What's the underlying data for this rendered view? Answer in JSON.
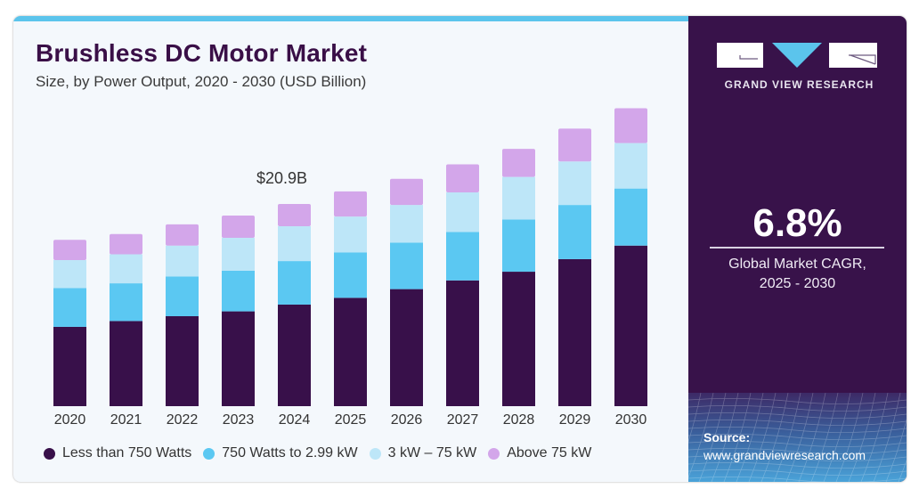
{
  "title": "Brushless DC Motor Market",
  "subtitle": "Size, by Power Output, 2020 - 2030 (USD Billion)",
  "annotation": {
    "label": "$20.9B",
    "year": "2024"
  },
  "sidebar": {
    "brand": "GRAND VIEW RESEARCH",
    "cagr_value": "6.8%",
    "cagr_label_line1": "Global Market CAGR,",
    "cagr_label_line2": "2025 - 2030",
    "source_label": "Source:",
    "source_url": "www.grandviewresearch.com"
  },
  "colors": {
    "background": "#f4f8fc",
    "sidebar": "#38124a",
    "accent": "#5bc4ec"
  },
  "chart_data": {
    "type": "bar",
    "stacked": true,
    "title": "Brushless DC Motor Market",
    "subtitle": "Size, by Power Output, 2020 - 2030 (USD Billion)",
    "xlabel": "",
    "ylabel": "",
    "ylim": [
      0,
      32
    ],
    "grid": false,
    "legend_position": "bottom",
    "categories": [
      "2020",
      "2021",
      "2022",
      "2023",
      "2024",
      "2025",
      "2026",
      "2027",
      "2028",
      "2029",
      "2030"
    ],
    "series": [
      {
        "name": "Less than 750 Watts",
        "color": "#38104a",
        "values": [
          8.2,
          8.8,
          9.3,
          9.8,
          10.5,
          11.2,
          12.1,
          13.0,
          13.9,
          15.2,
          16.6
        ]
      },
      {
        "name": "750 Watts to 2.99 kW",
        "color": "#5bc8f2",
        "values": [
          4.0,
          3.9,
          4.1,
          4.2,
          4.5,
          4.7,
          4.8,
          5.0,
          5.4,
          5.6,
          5.9
        ]
      },
      {
        "name": "3 kW – 75 kW",
        "color": "#bde6f8",
        "values": [
          2.9,
          3.0,
          3.2,
          3.4,
          3.6,
          3.7,
          3.9,
          4.1,
          4.4,
          4.5,
          4.7
        ]
      },
      {
        "name": "Above 75 kW",
        "color": "#d3a6ea",
        "values": [
          2.1,
          2.1,
          2.2,
          2.3,
          2.3,
          2.6,
          2.7,
          2.9,
          2.9,
          3.4,
          3.6
        ]
      }
    ],
    "annotations": [
      {
        "category": "2024",
        "text": "$20.9B"
      }
    ]
  }
}
